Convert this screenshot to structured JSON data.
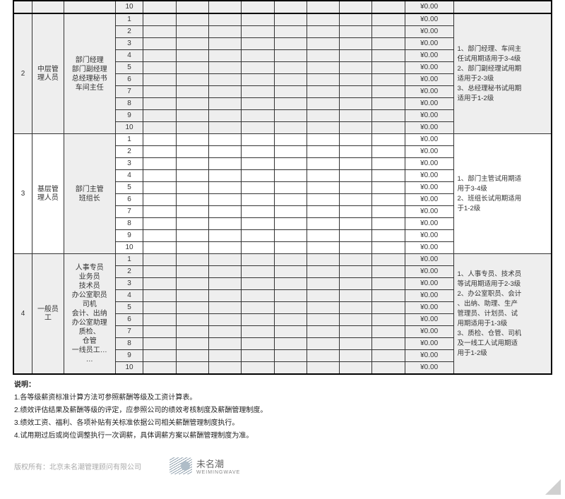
{
  "amount_text": "¥0.00",
  "blank_cols_count": 8,
  "groups": [
    {
      "num": "2",
      "topBorder": true,
      "category": "中层管\n理人员",
      "roles": "部门经理\n部门副经理\n总经理秘书\n车间主任",
      "catGray": true,
      "roleGray": true,
      "rowGray": true,
      "remarkGray": true,
      "levels": [
        "1",
        "2",
        "3",
        "4",
        "5",
        "6",
        "7",
        "8",
        "9",
        "10"
      ],
      "remark": "1、部门经理、车间主\n任试用期适用于3-4级\n2、部门副经理试用期\n适用于2-3级\n3、总经理秘书试用期\n适用于1-2级"
    },
    {
      "num": "3",
      "topBorder": false,
      "category": "基层管\n理人员",
      "roles": "部门主管\n班组长",
      "catGray": false,
      "roleGray": false,
      "rowGray": false,
      "remarkGray": false,
      "levels": [
        "1",
        "2",
        "3",
        "4",
        "5",
        "6",
        "7",
        "8",
        "9",
        "10"
      ],
      "remark": "1、部门主管试用期适\n用于3-4级\n2、班组长试用期适用\n于1-2级"
    },
    {
      "num": "4",
      "topBorder": false,
      "category": "一般员\n工",
      "roles": "人事专员\n业务员\n技术员\n办公室职员\n司机\n会计、出纳\n办公室助理\n质检、\n仓管\n一线员工…\n…",
      "catGray": true,
      "roleGray": true,
      "rowGray": true,
      "remarkGray": true,
      "levels": [
        "1",
        "2",
        "3",
        "4",
        "5",
        "6",
        "7",
        "8",
        "9",
        "10"
      ],
      "remark": "1、人事专员、技术员\n等试用期适用于2-3级\n2、办公室职员、会计\n、出纳、助理、生产\n管理员、计划员、试\n用期适用于1-3级\n3、质检、仓管、司机\n及一线工人试用期适\n用于1-2级"
    }
  ],
  "leading_row": {
    "level": "10",
    "amount": "¥0.00"
  },
  "notes": {
    "title": "说明：",
    "items": [
      "1.各等级薪资标准计算方法可参照薪酬等级及工资计算表。",
      "2.绩效评估结果及薪酬等级的评定，应参照公司的绩效考核制度及薪酬管理制度。",
      "3.绩效工资、福利、各项补贴有关标准依据公司相关薪酬管理制度执行。",
      "4.试用期过后或岗位调整执行一次调薪，具体调薪方案以薪酬管理制度为准。"
    ]
  },
  "footer": {
    "copyright": "版权所有：北京未名潮管理顾问有限公司",
    "brand": "未名潮",
    "brand_sub": "WEIMINGWAVE"
  }
}
